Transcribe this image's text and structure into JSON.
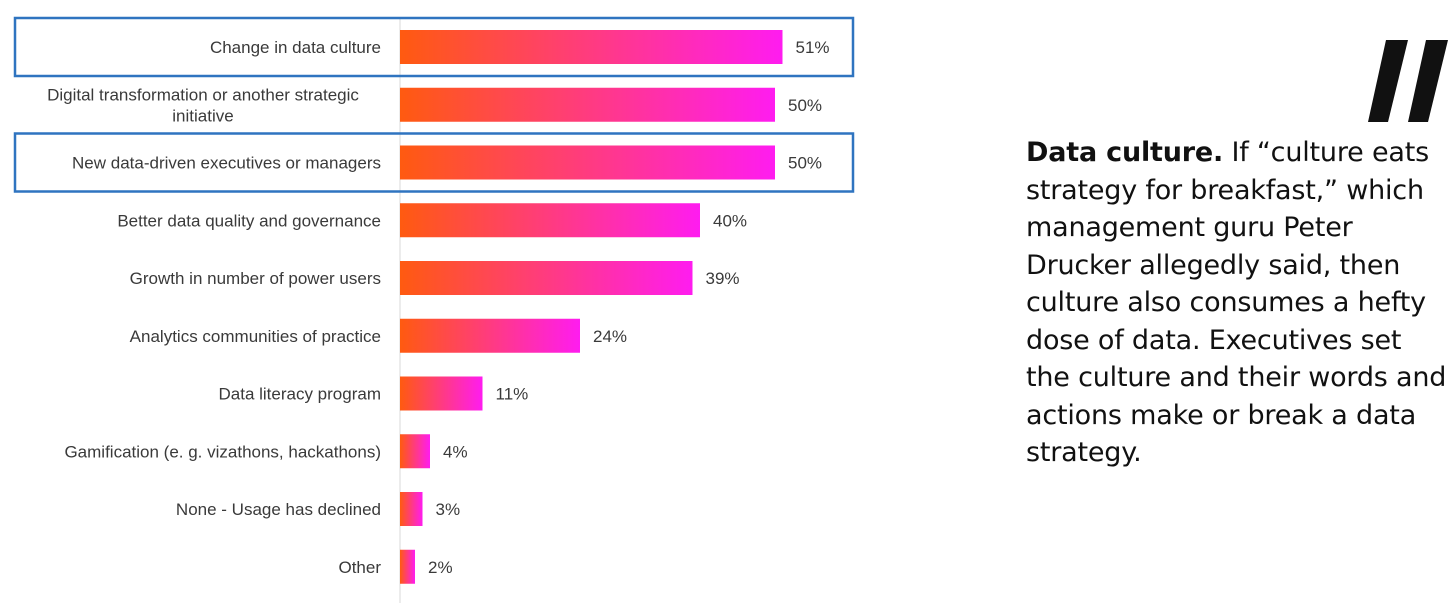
{
  "chart_data": {
    "type": "bar",
    "orientation": "horizontal",
    "categories": [
      [
        "Change in data culture"
      ],
      [
        "Digital transformation or another strategic",
        "initiative"
      ],
      [
        "New data-driven executives or managers"
      ],
      [
        "Better data quality and governance"
      ],
      [
        "Growth in number of power users"
      ],
      [
        "Analytics communities of practice"
      ],
      [
        "Data literacy program"
      ],
      [
        "Gamification (e. g. vizathons, hackathons)"
      ],
      [
        "None - Usage has declined"
      ],
      [
        "Other"
      ]
    ],
    "values": [
      51,
      50,
      50,
      40,
      39,
      24,
      11,
      4,
      3,
      2
    ],
    "value_labels": [
      "51%",
      "50%",
      "50%",
      "40%",
      "39%",
      "24%",
      "11%",
      "4%",
      "3%",
      "2%"
    ],
    "highlighted": [
      0,
      2
    ],
    "colors": {
      "gradient_start": "#ff5a10",
      "gradient_end": "#ff1cf0",
      "highlight_box": "#2f74c0",
      "axis_line": "#d8d8d8",
      "label_text": "#3a3a3a"
    }
  },
  "quote": {
    "icon": "quotation-marks-icon",
    "lead": "Data culture.",
    "body": " If “culture eats strategy for breakfast,” which management guru Peter Drucker allegedly said, then culture also consumes a hefty dose of data. Executives set the culture and their words and actions make or break a data strategy."
  }
}
